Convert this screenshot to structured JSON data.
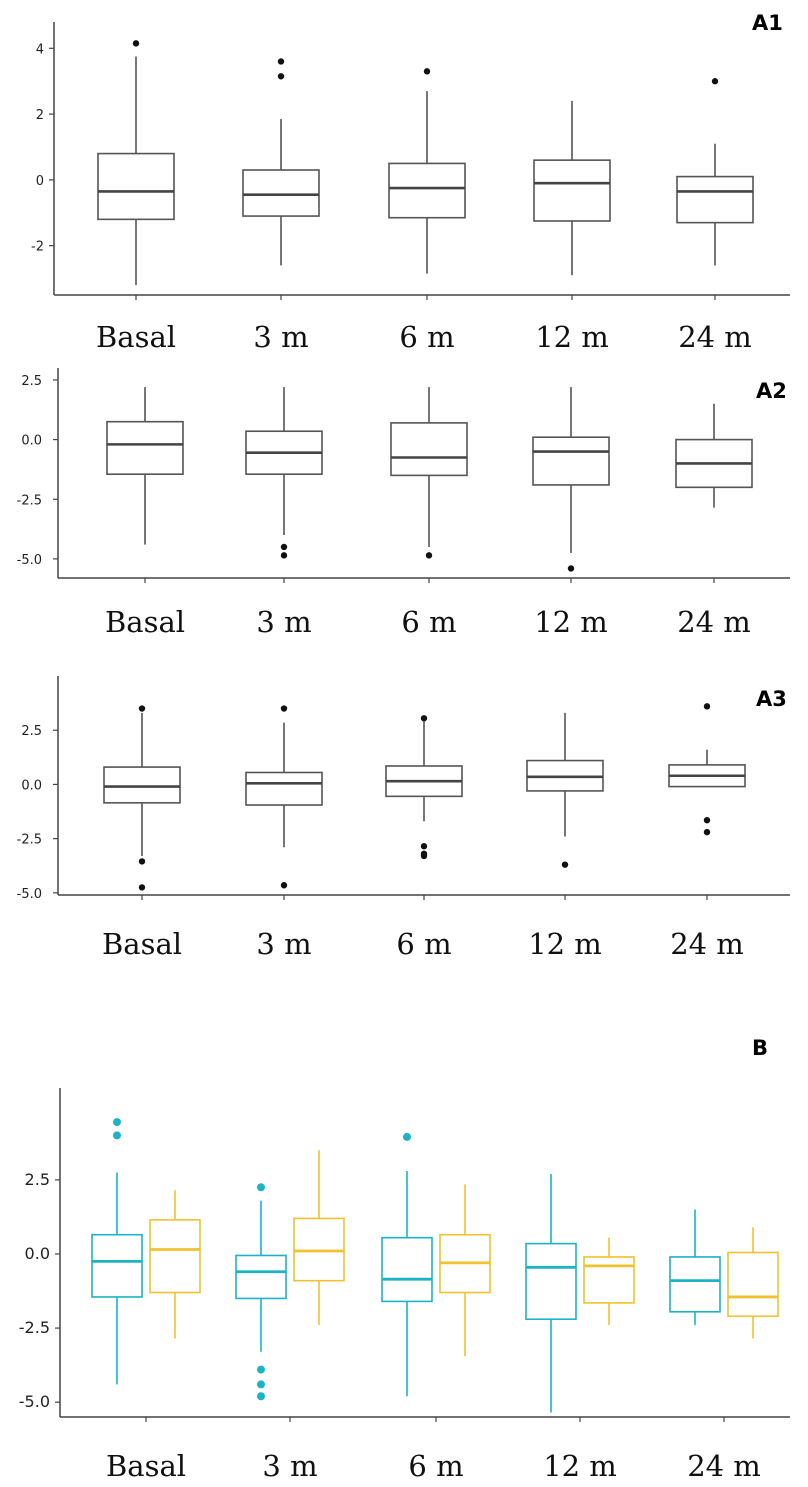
{
  "chart_data": [
    {
      "type": "box",
      "panel_label": "A1",
      "categories": [
        "Basal",
        "3 m",
        "6 m",
        "12 m",
        "24 m"
      ],
      "yticks": [
        "4",
        "2",
        "0",
        "-2"
      ],
      "ylim": [
        -3.5,
        4.8
      ],
      "boxes": [
        {
          "low": -3.2,
          "q1": -1.2,
          "median": -0.35,
          "q3": 0.8,
          "high": 3.75,
          "outliers": [
            4.15
          ]
        },
        {
          "low": -2.6,
          "q1": -1.1,
          "median": -0.45,
          "q3": 0.3,
          "high": 1.85,
          "outliers": [
            3.6,
            3.15
          ]
        },
        {
          "low": -2.85,
          "q1": -1.15,
          "median": -0.25,
          "q3": 0.5,
          "high": 2.7,
          "outliers": [
            3.3
          ]
        },
        {
          "low": -2.9,
          "q1": -1.25,
          "median": -0.1,
          "q3": 0.6,
          "high": 2.4,
          "outliers": []
        },
        {
          "low": -2.6,
          "q1": -1.3,
          "median": -0.35,
          "q3": 0.1,
          "high": 1.1,
          "outliers": [
            3.0
          ]
        }
      ]
    },
    {
      "type": "box",
      "panel_label": "A2",
      "categories": [
        "Basal",
        "3 m",
        "6 m",
        "12 m",
        "24 m"
      ],
      "yticks": [
        "2.5",
        "0.0",
        "-2.5",
        "-5.0"
      ],
      "ylim": [
        -5.8,
        3.0
      ],
      "boxes": [
        {
          "low": -4.4,
          "q1": -1.45,
          "median": -0.2,
          "q3": 0.75,
          "high": 2.2,
          "outliers": []
        },
        {
          "low": -4.0,
          "q1": -1.45,
          "median": -0.55,
          "q3": 0.35,
          "high": 2.2,
          "outliers": [
            -4.5,
            -4.85
          ]
        },
        {
          "low": -4.5,
          "q1": -1.5,
          "median": -0.75,
          "q3": 0.7,
          "high": 2.2,
          "outliers": [
            -4.85
          ]
        },
        {
          "low": -4.75,
          "q1": -1.9,
          "median": -0.5,
          "q3": 0.1,
          "high": 2.2,
          "outliers": [
            -5.4
          ]
        },
        {
          "low": -2.85,
          "q1": -2.0,
          "median": -1.0,
          "q3": 0.0,
          "high": 1.5,
          "outliers": []
        }
      ]
    },
    {
      "type": "box",
      "panel_label": "A3",
      "categories": [
        "Basal",
        "3 m",
        "6 m",
        "12 m",
        "24 m"
      ],
      "yticks": [
        "2.5",
        "0.0",
        "-2.5",
        "-5.0"
      ],
      "ylim": [
        -5.1,
        5.0
      ],
      "boxes": [
        {
          "low": -3.3,
          "q1": -0.85,
          "median": -0.1,
          "q3": 0.8,
          "high": 3.3,
          "outliers": [
            3.5,
            -3.55,
            -4.75
          ]
        },
        {
          "low": -2.9,
          "q1": -0.95,
          "median": 0.05,
          "q3": 0.55,
          "high": 2.85,
          "outliers": [
            3.5,
            -4.65
          ]
        },
        {
          "low": -1.7,
          "q1": -0.55,
          "median": 0.15,
          "q3": 0.85,
          "high": 2.9,
          "outliers": [
            3.05,
            -2.85,
            -3.2,
            -3.3
          ]
        },
        {
          "low": -2.4,
          "q1": -0.3,
          "median": 0.35,
          "q3": 1.1,
          "high": 3.3,
          "outliers": [
            -3.7
          ]
        },
        {
          "low": -0.1,
          "q1": -0.1,
          "median": 0.4,
          "q3": 0.9,
          "high": 1.6,
          "outliers": [
            3.6,
            -1.65,
            -2.2
          ]
        }
      ]
    },
    {
      "type": "box",
      "panel_label": "B",
      "categories": [
        "Basal",
        "3 m",
        "6 m",
        "12 m",
        "24 m"
      ],
      "yticks": [
        "2.5",
        "0.0",
        "-2.5",
        "-5.0"
      ],
      "ylim": [
        -5.5,
        5.6
      ],
      "colors": [
        "#1AB4C4",
        "#F2C12E"
      ],
      "series": [
        {
          "boxes": [
            {
              "low": -4.4,
              "q1": -1.45,
              "median": -0.25,
              "q3": 0.65,
              "high": 2.75,
              "outliers": [
                4.45,
                4.0
              ]
            },
            {
              "low": -3.3,
              "q1": -1.5,
              "median": -0.6,
              "q3": -0.05,
              "high": 1.8,
              "outliers": [
                2.25,
                -3.9,
                -4.4,
                -4.8
              ]
            },
            {
              "low": -4.8,
              "q1": -1.6,
              "median": -0.85,
              "q3": 0.55,
              "high": 2.8,
              "outliers": [
                3.95
              ]
            },
            {
              "low": -5.35,
              "q1": -2.2,
              "median": -0.45,
              "q3": 0.35,
              "high": 2.7,
              "outliers": []
            },
            {
              "low": -2.4,
              "q1": -1.95,
              "median": -0.9,
              "q3": -0.1,
              "high": 1.5,
              "outliers": []
            }
          ]
        },
        {
          "boxes": [
            {
              "low": -2.85,
              "q1": -1.3,
              "median": 0.15,
              "q3": 1.15,
              "high": 2.15,
              "outliers": []
            },
            {
              "low": -2.4,
              "q1": -0.9,
              "median": 0.1,
              "q3": 1.2,
              "high": 3.5,
              "outliers": []
            },
            {
              "low": -3.45,
              "q1": -1.3,
              "median": -0.3,
              "q3": 0.65,
              "high": 2.35,
              "outliers": []
            },
            {
              "low": -2.4,
              "q1": -1.65,
              "median": -0.4,
              "q3": -0.1,
              "high": 0.55,
              "outliers": []
            },
            {
              "low": -2.85,
              "q1": -2.1,
              "median": -1.45,
              "q3": 0.05,
              "high": 0.9,
              "outliers": []
            }
          ]
        }
      ]
    }
  ]
}
